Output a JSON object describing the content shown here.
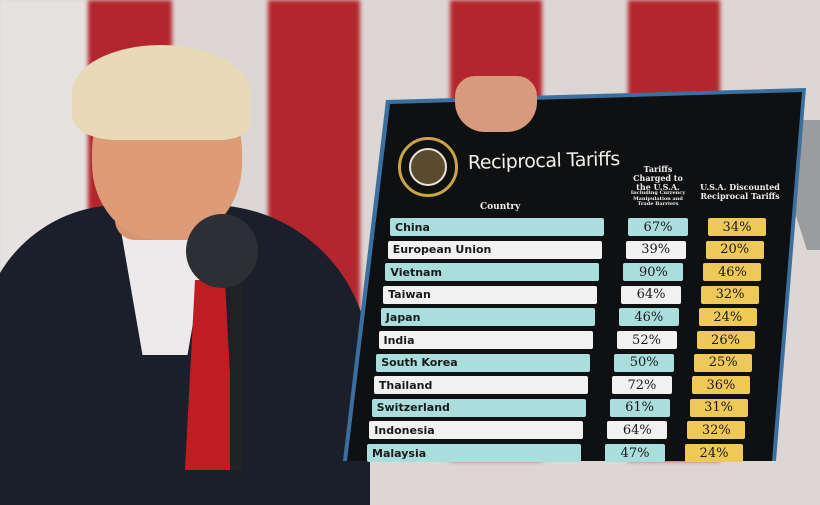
{
  "board": {
    "title": "Reciprocal Tariffs",
    "seal_text": "Seal of the President of the United States",
    "columns": {
      "country": "Country",
      "charged": "Tariffs Charged to the U.S.A.",
      "charged_note": "Including Currency Manipulation and Trade Barriers",
      "discounted": "U.S.A. Discounted Reciprocal Tariffs"
    },
    "rows": [
      {
        "country": "China",
        "charged": "67%",
        "reciprocal": "34%"
      },
      {
        "country": "European Union",
        "charged": "39%",
        "reciprocal": "20%"
      },
      {
        "country": "Vietnam",
        "charged": "90%",
        "reciprocal": "46%"
      },
      {
        "country": "Taiwan",
        "charged": "64%",
        "reciprocal": "32%"
      },
      {
        "country": "Japan",
        "charged": "46%",
        "reciprocal": "24%"
      },
      {
        "country": "India",
        "charged": "52%",
        "reciprocal": "26%"
      },
      {
        "country": "South Korea",
        "charged": "50%",
        "reciprocal": "25%"
      },
      {
        "country": "Thailand",
        "charged": "72%",
        "reciprocal": "36%"
      },
      {
        "country": "Switzerland",
        "charged": "61%",
        "reciprocal": "31%"
      },
      {
        "country": "Indonesia",
        "charged": "64%",
        "reciprocal": "32%"
      },
      {
        "country": "Malaysia",
        "charged": "47%",
        "reciprocal": "24%"
      }
    ],
    "colors": {
      "teal": "#a9dedd",
      "white": "#f1f1f1",
      "gold": "#efc957",
      "board": "#0f1012"
    }
  }
}
